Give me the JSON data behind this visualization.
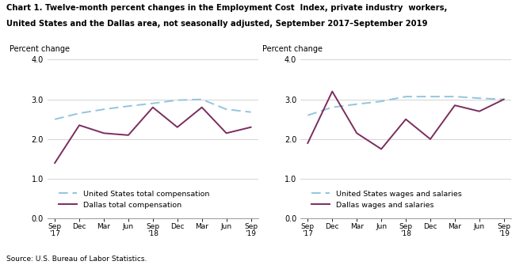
{
  "title_line1": "Chart 1. Twelve-month percent changes in the Employment Cost  Index, private industry  workers,",
  "title_line2": "United States and the Dallas area, not seasonally adjusted, September 2017–September 2019",
  "source": "Source: U.S. Bureau of Labor Statistics.",
  "ylabel": "Percent change",
  "ylim": [
    0.0,
    4.0
  ],
  "yticks": [
    0.0,
    1.0,
    2.0,
    3.0,
    4.0
  ],
  "left_chart": {
    "us_total_comp": [
      2.5,
      2.65,
      2.75,
      2.83,
      2.9,
      2.98,
      3.0,
      2.75,
      2.68
    ],
    "dallas_total_comp": [
      1.4,
      2.35,
      2.15,
      2.1,
      2.8,
      2.3,
      2.8,
      2.15,
      2.3
    ],
    "legend1": "United States total compensation",
    "legend2": "Dallas total compensation"
  },
  "right_chart": {
    "us_wages_sal": [
      2.6,
      2.8,
      2.88,
      2.95,
      3.07,
      3.07,
      3.07,
      3.03,
      3.0
    ],
    "dallas_wages_sal": [
      1.9,
      3.2,
      2.15,
      1.75,
      2.5,
      2.0,
      2.85,
      2.7,
      3.0
    ],
    "legend1": "United States wages and salaries",
    "legend2": "Dallas wages and salaries"
  },
  "us_color": "#92C5DE",
  "dallas_color": "#7B2D5E",
  "x_tick_labels": [
    "Sep\n'17",
    "Dec",
    "Mar",
    "Jun",
    "Sep\n'18",
    "Dec",
    "Mar",
    "Jun",
    "Sep\n'19"
  ]
}
